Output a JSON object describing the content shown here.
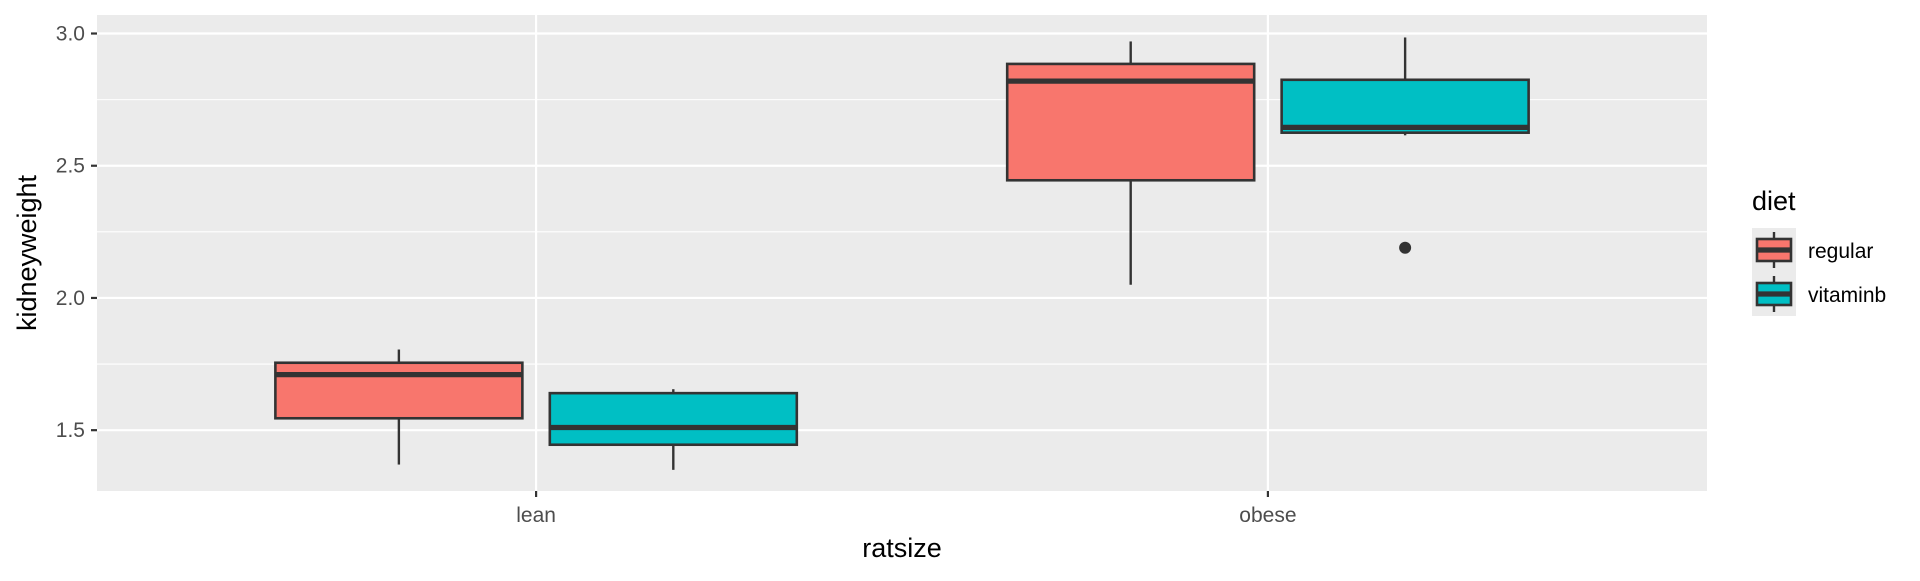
{
  "chart_data": {
    "type": "boxplot",
    "xlabel": "ratsize",
    "ylabel": "kidneyweight",
    "categories": [
      "lean",
      "obese"
    ],
    "ylim": [
      1.27,
      3.07
    ],
    "y_ticks": [
      1.5,
      2.0,
      2.5,
      3.0
    ],
    "y_tick_labels": [
      "1.5",
      "2.0",
      "2.5",
      "3.0"
    ],
    "grid": true,
    "legend": {
      "title": "diet",
      "position": "right"
    },
    "series": [
      {
        "name": "regular",
        "color": "#F8766D",
        "boxes": [
          {
            "category": "lean",
            "lower_whisker": 1.37,
            "q1": 1.545,
            "median": 1.71,
            "q3": 1.755,
            "upper_whisker": 1.805,
            "outliers": []
          },
          {
            "category": "obese",
            "lower_whisker": 2.05,
            "q1": 2.445,
            "median": 2.82,
            "q3": 2.885,
            "upper_whisker": 2.97,
            "outliers": []
          }
        ]
      },
      {
        "name": "vitaminb",
        "color": "#00BFC4",
        "boxes": [
          {
            "category": "lean",
            "lower_whisker": 1.35,
            "q1": 1.445,
            "median": 1.51,
            "q3": 1.64,
            "upper_whisker": 1.655,
            "outliers": []
          },
          {
            "category": "obese",
            "lower_whisker": 2.615,
            "q1": 2.625,
            "median": 2.645,
            "q3": 2.825,
            "upper_whisker": 2.985,
            "outliers": [
              2.19
            ]
          }
        ]
      }
    ]
  }
}
